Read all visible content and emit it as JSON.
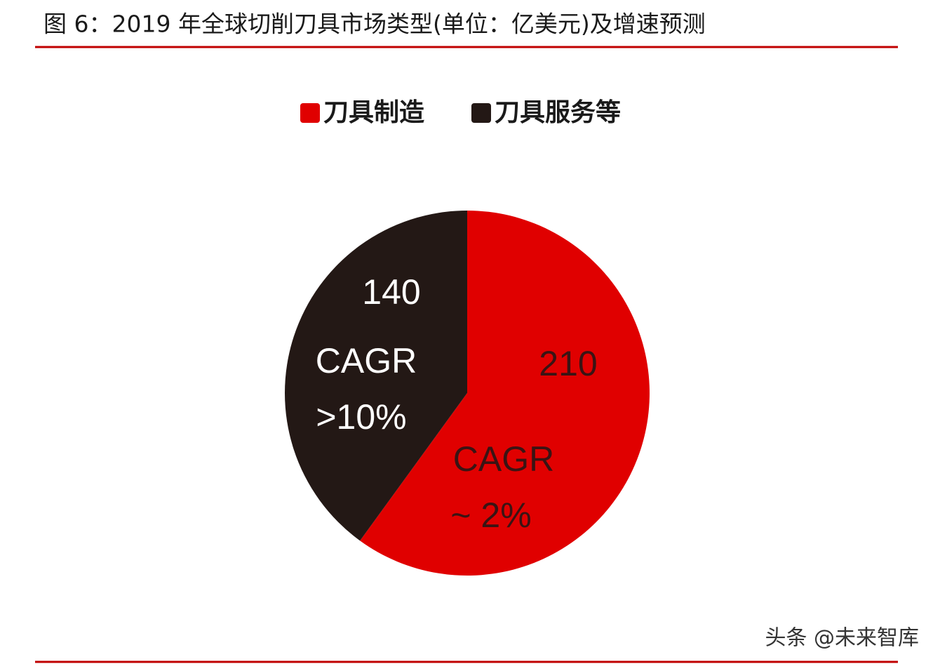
{
  "chart_data": {
    "type": "pie",
    "title": "图 6：2019 年全球切削刀具市场类型(单位：亿美元)及增速预测",
    "categories": [
      "刀具制造",
      "刀具服务等"
    ],
    "values": [
      210,
      140
    ],
    "colors": [
      "#e00000",
      "#231815"
    ],
    "annotations": [
      [
        "CAGR",
        "~ 2%"
      ],
      [
        "CAGR",
        ">10%"
      ]
    ],
    "legend": "top",
    "watermark": "头条 @未来智库"
  }
}
